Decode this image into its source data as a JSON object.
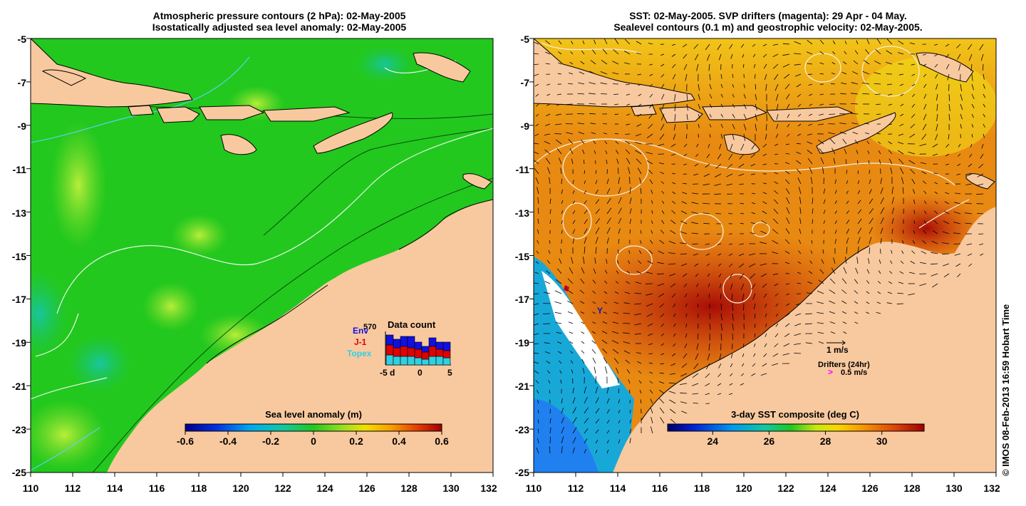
{
  "left_panel": {
    "title_line1": "Atmospheric pressure contours (2 hPa): 02-May-2005",
    "title_line2": "Isostatically adjusted sea level anomaly: 02-May-2005",
    "x_ticks": [
      "110",
      "112",
      "114",
      "116",
      "118",
      "120",
      "122",
      "124",
      "126",
      "128",
      "130",
      "132"
    ],
    "y_ticks": [
      "-5",
      "-7",
      "-9",
      "-11",
      "-13",
      "-15",
      "-17",
      "-19",
      "-21",
      "-23",
      "-25"
    ],
    "colorbar_title": "Sea level anomaly (m)",
    "colorbar_ticks": [
      "-0.6",
      "-0.4",
      "-0.2",
      "0",
      "0.2",
      "0.4",
      "0.6"
    ],
    "inset": {
      "title": "Data count",
      "max_label": "570",
      "legend": [
        {
          "label": "Env",
          "color": "#1010e0"
        },
        {
          "label": "J-1",
          "color": "#e00000"
        },
        {
          "label": "Topex",
          "color": "#30d0e0"
        }
      ],
      "x_ticks": [
        "-5",
        "d",
        "0",
        "5"
      ]
    }
  },
  "right_panel": {
    "title_line1": "SST: 02-May-2005. SVP drifters (magenta): 29 Apr - 04 May.",
    "title_line2": "Sealevel contours (0.1 m) and geostrophic velocity: 02-May-2005.",
    "x_ticks": [
      "110",
      "112",
      "114",
      "116",
      "118",
      "120",
      "122",
      "124",
      "126",
      "128",
      "130",
      "132"
    ],
    "y_ticks": [
      "-5",
      "-7",
      "-9",
      "-11",
      "-13",
      "-15",
      "-17",
      "-19",
      "-21",
      "-23",
      "-25"
    ],
    "colorbar_title": "3-day SST composite (deg C)",
    "colorbar_ticks": [
      "24",
      "26",
      "28",
      "30"
    ],
    "velocity_scale_label": "1 m/s",
    "drifters_label": "Drifters (24hr)",
    "drifter_scale_label": "0.5 m/s"
  },
  "credit": "© IMOS 08-Feb-2013 16:59 Hobart Time",
  "colors": {
    "land": "#f8c99f",
    "sla_green": "#22c81e",
    "sst_orange": "#e87a10",
    "sst_red": "#b81808",
    "drifter_magenta": "#ff00ff"
  }
}
